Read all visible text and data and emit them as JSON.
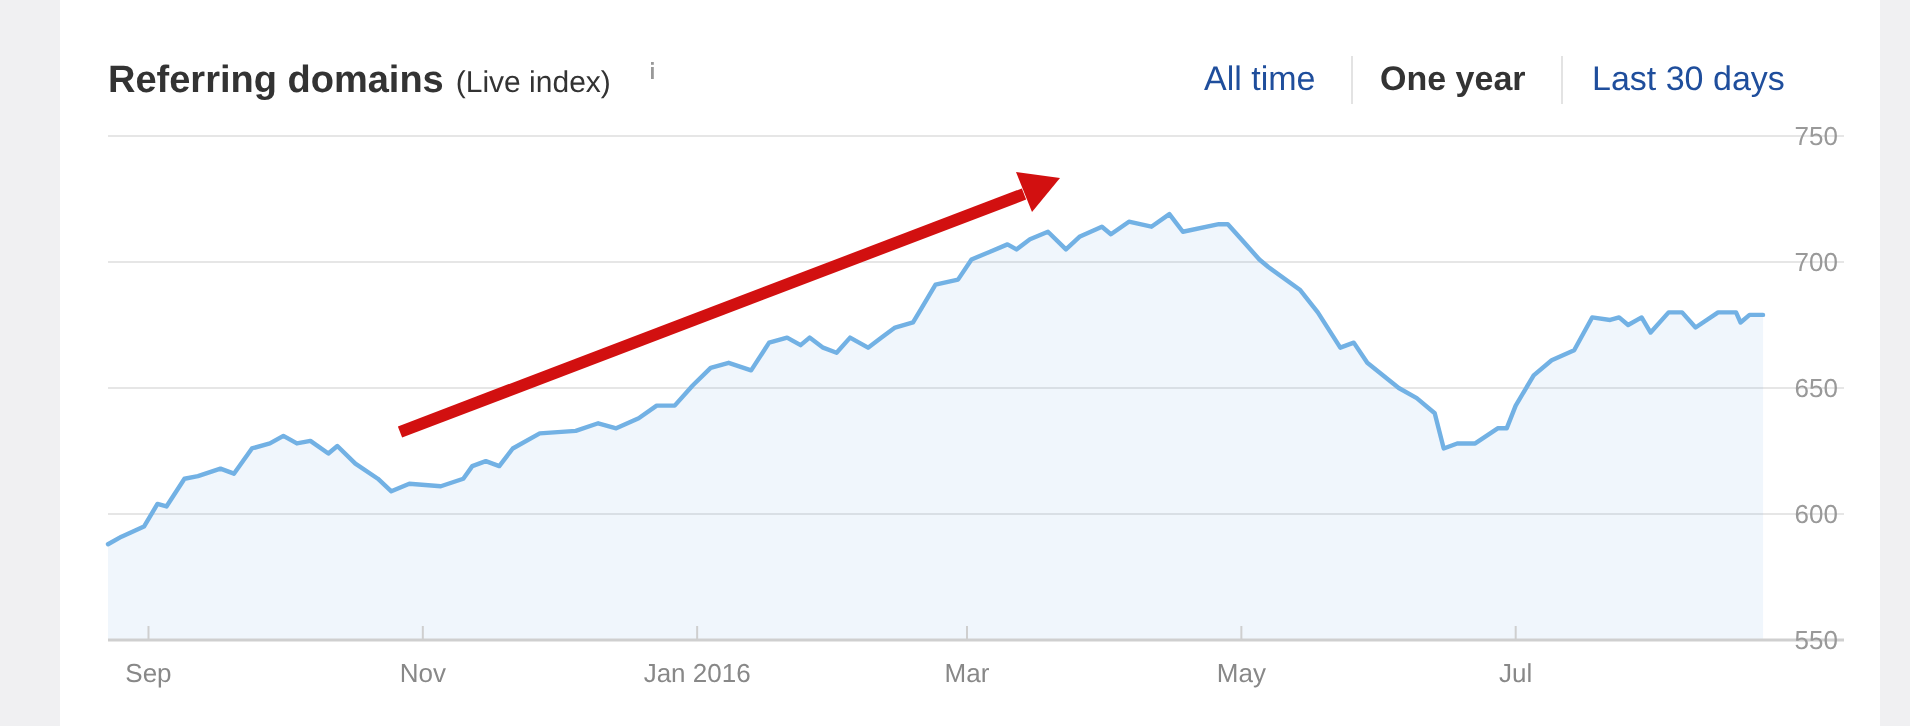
{
  "chart_data": {
    "type": "area",
    "title": "Referring domains",
    "subtitle": "(Live index)",
    "annotations": [
      "All time",
      "One year",
      "Last 30 days"
    ],
    "xlim": [
      "2015-08-23",
      "2016-09-12"
    ],
    "xticks": [
      {
        "value": "2015-09-01",
        "label": "Sep"
      },
      {
        "value": "2015-11-01",
        "label": "Nov"
      },
      {
        "value": "2016-01-01",
        "label": "Jan 2016"
      },
      {
        "value": "2016-03-01",
        "label": "Mar"
      },
      {
        "value": "2016-05-01",
        "label": "May"
      },
      {
        "value": "2016-07-01",
        "label": "Jul"
      }
    ],
    "ylim": [
      550,
      750
    ],
    "yticks": [
      550,
      600,
      650,
      700,
      750
    ],
    "grid": "y",
    "series": [
      {
        "color": "#72b1e4",
        "x": [
          "2015-08-23",
          "2015-08-26",
          "2015-08-31",
          "2015-09-03",
          "2015-09-05",
          "2015-09-09",
          "2015-09-12",
          "2015-09-17",
          "2015-09-20",
          "2015-09-24",
          "2015-09-28",
          "2015-10-01",
          "2015-10-04",
          "2015-10-07",
          "2015-10-11",
          "2015-10-13",
          "2015-10-17",
          "2015-10-22",
          "2015-10-25",
          "2015-10-29",
          "2015-11-05",
          "2015-11-10",
          "2015-11-12",
          "2015-11-15",
          "2015-11-18",
          "2015-11-21",
          "2015-11-27",
          "2015-12-05",
          "2015-12-10",
          "2015-12-14",
          "2015-12-19",
          "2015-12-23",
          "2015-12-27",
          "2015-12-31",
          "2016-01-04",
          "2016-01-08",
          "2016-01-13",
          "2016-01-17",
          "2016-01-21",
          "2016-01-24",
          "2016-01-26",
          "2016-01-29",
          "2016-02-01",
          "2016-02-04",
          "2016-02-08",
          "2016-02-11",
          "2016-02-14",
          "2016-02-18",
          "2016-02-20",
          "2016-02-23",
          "2016-02-28",
          "2016-03-02",
          "2016-03-06",
          "2016-03-10",
          "2016-03-12",
          "2016-03-15",
          "2016-03-19",
          "2016-03-23",
          "2016-03-26",
          "2016-03-31",
          "2016-04-02",
          "2016-04-06",
          "2016-04-11",
          "2016-04-15",
          "2016-04-18",
          "2016-04-26",
          "2016-04-28",
          "2016-05-01",
          "2016-05-05",
          "2016-05-07",
          "2016-05-14",
          "2016-05-18",
          "2016-05-23",
          "2016-05-26",
          "2016-05-29",
          "2016-06-05",
          "2016-06-09",
          "2016-06-13",
          "2016-06-15",
          "2016-06-18",
          "2016-06-22",
          "2016-06-27",
          "2016-06-29",
          "2016-07-01",
          "2016-07-05",
          "2016-07-09",
          "2016-07-14",
          "2016-07-18",
          "2016-07-22",
          "2016-07-24",
          "2016-07-26",
          "2016-07-29",
          "2016-07-31",
          "2016-08-04",
          "2016-08-07",
          "2016-08-10",
          "2016-08-15",
          "2016-08-19",
          "2016-08-20",
          "2016-08-22",
          "2016-08-25"
        ],
        "values": [
          588,
          591,
          595,
          604,
          603,
          614,
          615,
          618,
          616,
          626,
          628,
          631,
          628,
          629,
          624,
          627,
          620,
          614,
          609,
          612,
          611,
          614,
          619,
          621,
          619,
          626,
          632,
          633,
          636,
          634,
          638,
          643,
          643,
          651,
          658,
          660,
          657,
          668,
          670,
          667,
          670,
          666,
          664,
          670,
          666,
          670,
          674,
          676,
          682,
          691,
          693,
          701,
          704,
          707,
          705,
          709,
          712,
          705,
          710,
          714,
          711,
          716,
          714,
          719,
          712,
          715,
          715,
          709,
          701,
          698,
          689,
          680,
          666,
          668,
          660,
          650,
          646,
          640,
          626,
          628,
          628,
          634,
          634,
          643,
          655,
          661,
          665,
          678,
          677,
          678,
          675,
          678,
          672,
          680,
          680,
          674,
          680,
          680,
          676,
          679,
          679
        ]
      }
    ]
  }
}
